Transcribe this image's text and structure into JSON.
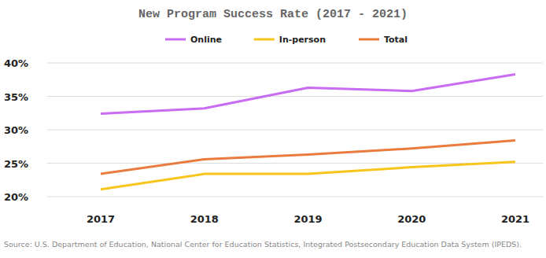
{
  "chart_data": {
    "type": "line",
    "title": "New Program Success Rate (2017 - 2021)",
    "source": "Source: U.S. Department of Education, National Center for Education Statistics, Integrated Postsecondary Education Data System (IPEDS).",
    "categories": [
      "2017",
      "2018",
      "2019",
      "2020",
      "2021"
    ],
    "series": [
      {
        "name": "Online",
        "color": "#c86cf3",
        "values": [
          32.4,
          33.2,
          36.3,
          35.8,
          38.3
        ]
      },
      {
        "name": "In-person",
        "color": "#f7c51c",
        "values": [
          21.1,
          23.4,
          23.4,
          24.4,
          25.2
        ]
      },
      {
        "name": "Total",
        "color": "#ea7b3e",
        "values": [
          23.4,
          25.6,
          26.3,
          27.2,
          28.4
        ]
      }
    ],
    "ylim": [
      20,
      40
    ],
    "yticks": [
      {
        "value": 20,
        "label": "20%"
      },
      {
        "value": 25,
        "label": "25%"
      },
      {
        "value": 30,
        "label": "30%"
      },
      {
        "value": 35,
        "label": "35%"
      },
      {
        "value": 40,
        "label": "40%"
      }
    ],
    "grid": true,
    "legend": "top"
  }
}
